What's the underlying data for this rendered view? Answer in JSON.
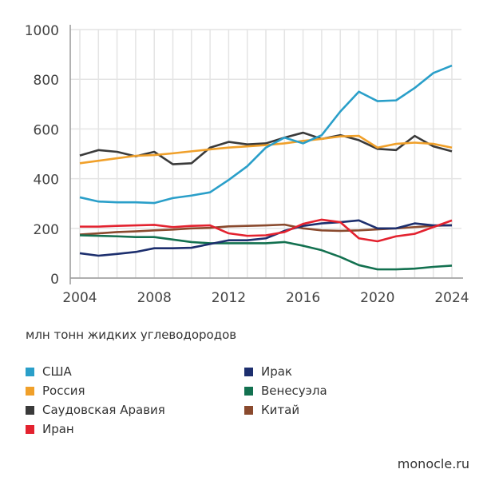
{
  "chart_data": {
    "type": "line",
    "title": "",
    "xlabel": "",
    "ylabel": "млн тонн жидких углеводородов",
    "x": [
      2004,
      2005,
      2006,
      2007,
      2008,
      2009,
      2010,
      2011,
      2012,
      2013,
      2014,
      2015,
      2016,
      2017,
      2018,
      2019,
      2020,
      2021,
      2022,
      2023,
      2024
    ],
    "xticks": [
      "2004",
      "2008",
      "2012",
      "2016",
      "2020",
      "2024"
    ],
    "yticks": [
      "0",
      "200",
      "400",
      "600",
      "800",
      "1000"
    ],
    "ylim": [
      0,
      1000
    ],
    "xlim": [
      2004,
      2024
    ],
    "grid": true,
    "legend_position": "bottom",
    "series": [
      {
        "name": "США",
        "color": "#2a9fc9",
        "values": [
          325,
          308,
          305,
          305,
          302,
          322,
          332,
          345,
          395,
          450,
          525,
          565,
          542,
          575,
          670,
          750,
          712,
          715,
          765,
          825,
          855
        ]
      },
      {
        "name": "Россия",
        "color": "#f0a02a",
        "values": [
          462,
          472,
          482,
          492,
          495,
          502,
          510,
          518,
          525,
          530,
          535,
          542,
          552,
          560,
          570,
          572,
          525,
          540,
          545,
          540,
          525
        ]
      },
      {
        "name": "Саудовская Аравия",
        "color": "#3a3a3a",
        "values": [
          493,
          515,
          508,
          490,
          508,
          458,
          462,
          525,
          548,
          538,
          542,
          565,
          585,
          560,
          575,
          555,
          520,
          515,
          572,
          530,
          510
        ]
      },
      {
        "name": "Иран",
        "color": "#e3222f",
        "values": [
          207,
          207,
          210,
          212,
          214,
          205,
          210,
          212,
          180,
          170,
          172,
          185,
          218,
          235,
          225,
          160,
          148,
          168,
          178,
          205,
          232
        ]
      },
      {
        "name": "Ирак",
        "color": "#1d2f6e",
        "values": [
          100,
          90,
          97,
          105,
          120,
          120,
          122,
          137,
          152,
          152,
          160,
          190,
          210,
          220,
          225,
          232,
          200,
          200,
          220,
          212,
          212
        ]
      },
      {
        "name": "Венесуэла",
        "color": "#137150",
        "values": [
          172,
          170,
          168,
          165,
          165,
          155,
          145,
          140,
          140,
          140,
          140,
          145,
          130,
          112,
          85,
          52,
          35,
          35,
          38,
          45,
          50
        ]
      },
      {
        "name": "Китай",
        "color": "#8a4a2e",
        "values": [
          175,
          180,
          185,
          188,
          192,
          195,
          200,
          202,
          208,
          210,
          212,
          215,
          200,
          192,
          190,
          192,
          196,
          200,
          205,
          210,
          213
        ]
      }
    ]
  },
  "source": "monocle.ru"
}
